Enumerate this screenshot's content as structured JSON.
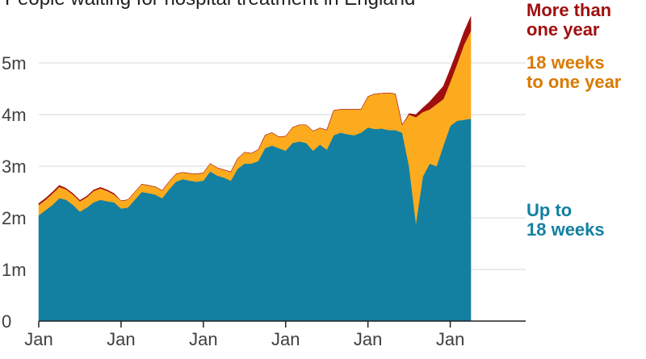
{
  "chart_data": {
    "type": "area",
    "stacked": true,
    "title": "People waiting for hospital treatment in England",
    "ylim": [
      0,
      6.0
    ],
    "y_ticks": [
      0,
      1,
      2,
      3,
      4,
      5
    ],
    "y_tick_labels": [
      "0",
      "1m",
      "2m",
      "3m",
      "4m",
      "5m"
    ],
    "x_range": [
      0,
      71
    ],
    "x_ticks": [
      0,
      12,
      24,
      36,
      48,
      60
    ],
    "x_tick_labels": [
      "Jan",
      "Jan",
      "Jan",
      "Jan",
      "Jan",
      "Jan"
    ],
    "legend_placement": "right",
    "series": [
      {
        "name": "Up to 18 weeks",
        "legend_lines": [
          "Up to",
          "18 weeks"
        ],
        "color": "#1380a1",
        "values": [
          2.05,
          2.15,
          2.25,
          2.38,
          2.35,
          2.25,
          2.12,
          2.2,
          2.3,
          2.35,
          2.32,
          2.3,
          2.18,
          2.2,
          2.35,
          2.5,
          2.48,
          2.45,
          2.38,
          2.55,
          2.7,
          2.75,
          2.72,
          2.7,
          2.72,
          2.9,
          2.82,
          2.78,
          2.72,
          2.95,
          3.05,
          3.05,
          3.1,
          3.35,
          3.4,
          3.35,
          3.3,
          3.45,
          3.48,
          3.45,
          3.3,
          3.42,
          3.32,
          3.6,
          3.65,
          3.62,
          3.6,
          3.65,
          3.75,
          3.72,
          3.73,
          3.7,
          3.7,
          3.65,
          3.0,
          1.9,
          2.8,
          3.05,
          3.0,
          3.4,
          3.78,
          3.88,
          3.9,
          3.92
        ]
      },
      {
        "name": "18 weeks to one year",
        "legend_lines": [
          "18 weeks",
          "to one year"
        ],
        "color": "#fcab1f",
        "values": [
          0.2,
          0.2,
          0.22,
          0.22,
          0.2,
          0.2,
          0.2,
          0.2,
          0.22,
          0.22,
          0.2,
          0.15,
          0.15,
          0.15,
          0.15,
          0.15,
          0.15,
          0.15,
          0.15,
          0.15,
          0.15,
          0.13,
          0.14,
          0.15,
          0.15,
          0.15,
          0.15,
          0.15,
          0.17,
          0.2,
          0.22,
          0.2,
          0.22,
          0.25,
          0.25,
          0.22,
          0.28,
          0.3,
          0.32,
          0.35,
          0.38,
          0.32,
          0.38,
          0.48,
          0.45,
          0.48,
          0.5,
          0.45,
          0.6,
          0.68,
          0.68,
          0.72,
          0.7,
          0.15,
          1.0,
          2.05,
          1.25,
          1.05,
          1.2,
          0.9,
          0.85,
          1.1,
          1.45,
          1.7
        ]
      },
      {
        "name": "More than one year",
        "legend_lines": [
          "More than",
          "one year"
        ],
        "color": "#a00f0f",
        "values": [
          0.03,
          0.03,
          0.03,
          0.03,
          0.02,
          0.02,
          0.02,
          0.02,
          0.02,
          0.02,
          0.02,
          0.02,
          0.0,
          0.0,
          0.0,
          0.0,
          0.0,
          0.0,
          0.0,
          0.0,
          0.0,
          0.0,
          0.0,
          0.0,
          0.0,
          0.0,
          0.0,
          0.0,
          0.0,
          0.0,
          0.0,
          0.0,
          0.0,
          0.0,
          0.0,
          0.0,
          0.0,
          0.0,
          0.0,
          0.0,
          0.0,
          0.0,
          0.0,
          0.0,
          0.0,
          0.0,
          0.0,
          0.0,
          0.0,
          0.0,
          0.0,
          0.0,
          0.0,
          0.0,
          0.02,
          0.05,
          0.08,
          0.15,
          0.2,
          0.25,
          0.25,
          0.25,
          0.25,
          0.28
        ]
      }
    ]
  }
}
